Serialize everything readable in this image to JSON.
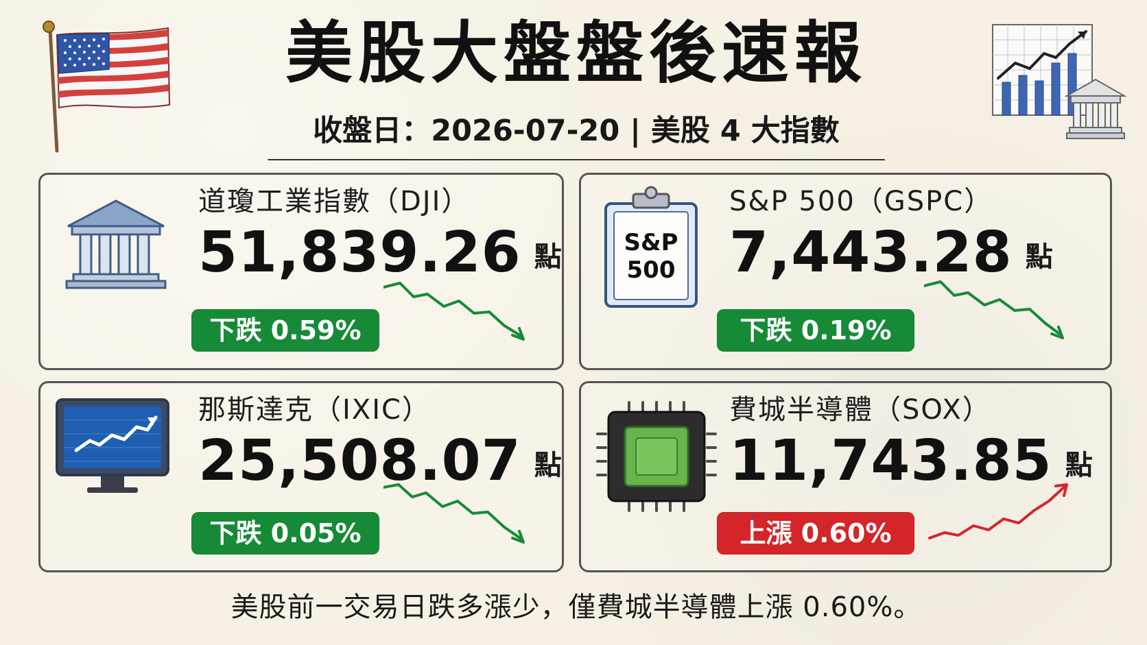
{
  "header": {
    "title": "美股大盤盤後速報",
    "subtitle": "收盤日：2026-07-20 | 美股 4 大指數"
  },
  "icons": {
    "flag": "us-flag-icon",
    "chart": "bank-chart-icon"
  },
  "cards": {
    "dji": {
      "title": "道瓊工業指數（DJI）",
      "value": "51,839.26",
      "unit": "點",
      "change_label": "下跌 0.59%",
      "direction": "down",
      "icon": "bank-building-icon"
    },
    "gspc": {
      "title": "S&P 500（GSPC）",
      "value": "7,443.28",
      "unit": "點",
      "change_label": "下跌 0.19%",
      "direction": "down",
      "icon": "clipboard-icon",
      "icon_text_line1": "S&P",
      "icon_text_line2": "500"
    },
    "ixic": {
      "title": "那斯達克（IXIC）",
      "value": "25,508.07",
      "unit": "點",
      "change_label": "下跌 0.05%",
      "direction": "down",
      "icon": "monitor-chart-icon"
    },
    "sox": {
      "title": "費城半導體（SOX）",
      "value": "11,743.85",
      "unit": "點",
      "change_label": "上漲 0.60%",
      "direction": "up",
      "icon": "chip-icon"
    }
  },
  "colors": {
    "down": "#178a37",
    "up": "#d3252a",
    "border": "#555555",
    "background": "#f6f1e4"
  },
  "footer": {
    "text": "美股前一交易日跌多漲少，僅費城半導體上漲 0.60%。"
  }
}
